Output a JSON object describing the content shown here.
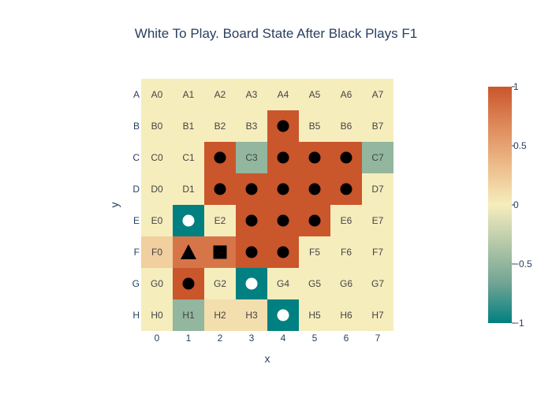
{
  "title": "White To Play. Board State After Black Plays F1",
  "chart_data": {
    "type": "heatmap",
    "x_categories": [
      "0",
      "1",
      "2",
      "3",
      "4",
      "5",
      "6",
      "7"
    ],
    "y_categories": [
      "A",
      "B",
      "C",
      "D",
      "E",
      "F",
      "G",
      "H"
    ],
    "xlabel": "x",
    "ylabel": "y",
    "zrange": [
      -1,
      1
    ],
    "colorbar_ticks": [
      1,
      0.5,
      0,
      -0.5,
      -1
    ],
    "colorbar_tick_labels": [
      "1",
      "0.5",
      "0",
      "−0.5",
      "−1"
    ],
    "colorscale": [
      "#008080",
      "#70a494",
      "#b4c8a8",
      "#f6edbd",
      "#edbb8a",
      "#de8a5a",
      "#ca562c"
    ],
    "z": [
      [
        0,
        0,
        0,
        0,
        0,
        0,
        0,
        0
      ],
      [
        0,
        0,
        0,
        0,
        1,
        0,
        0,
        0
      ],
      [
        0,
        0,
        1,
        -0.5,
        1,
        1,
        1,
        -0.5
      ],
      [
        0,
        0,
        1,
        1,
        1,
        1,
        1,
        0
      ],
      [
        0,
        -1,
        0,
        1,
        1,
        1,
        0,
        0
      ],
      [
        0.2,
        0.8,
        0.8,
        1,
        1,
        0,
        0,
        0
      ],
      [
        0,
        1,
        0,
        -1,
        0,
        0,
        0,
        0
      ],
      [
        0,
        -0.5,
        0.1,
        0.1,
        -1,
        0,
        0,
        0
      ]
    ],
    "cell_text": [
      [
        "A0",
        "A1",
        "A2",
        "A3",
        "A4",
        "A5",
        "A6",
        "A7"
      ],
      [
        "B0",
        "B1",
        "B2",
        "B3",
        "",
        "B5",
        "B6",
        "B7"
      ],
      [
        "C0",
        "C1",
        "",
        "C3",
        "",
        "",
        "",
        "C7"
      ],
      [
        "D0",
        "D1",
        "",
        "",
        "",
        "",
        "",
        "D7"
      ],
      [
        "E0",
        "",
        "E2",
        "",
        "",
        "",
        "E6",
        "E7"
      ],
      [
        "F0",
        "",
        "",
        "",
        "",
        "F5",
        "F6",
        "F7"
      ],
      [
        "G0",
        "",
        "G2",
        "",
        "G4",
        "G5",
        "G6",
        "G7"
      ],
      [
        "H0",
        "H1",
        "H2",
        "H3",
        "",
        "H5",
        "H6",
        "H7"
      ]
    ],
    "stones": [
      {
        "cell": "B4",
        "row": 1,
        "col": 4,
        "color": "black",
        "marker": "circle"
      },
      {
        "cell": "C2",
        "row": 2,
        "col": 2,
        "color": "black",
        "marker": "circle"
      },
      {
        "cell": "C4",
        "row": 2,
        "col": 4,
        "color": "black",
        "marker": "circle"
      },
      {
        "cell": "C5",
        "row": 2,
        "col": 5,
        "color": "black",
        "marker": "circle"
      },
      {
        "cell": "C6",
        "row": 2,
        "col": 6,
        "color": "black",
        "marker": "circle"
      },
      {
        "cell": "D2",
        "row": 3,
        "col": 2,
        "color": "black",
        "marker": "circle"
      },
      {
        "cell": "D3",
        "row": 3,
        "col": 3,
        "color": "black",
        "marker": "circle"
      },
      {
        "cell": "D4",
        "row": 3,
        "col": 4,
        "color": "black",
        "marker": "circle"
      },
      {
        "cell": "D5",
        "row": 3,
        "col": 5,
        "color": "black",
        "marker": "circle"
      },
      {
        "cell": "D6",
        "row": 3,
        "col": 6,
        "color": "black",
        "marker": "circle"
      },
      {
        "cell": "E1",
        "row": 4,
        "col": 1,
        "color": "white",
        "marker": "circle"
      },
      {
        "cell": "E3",
        "row": 4,
        "col": 3,
        "color": "black",
        "marker": "circle"
      },
      {
        "cell": "E4",
        "row": 4,
        "col": 4,
        "color": "black",
        "marker": "circle"
      },
      {
        "cell": "E5",
        "row": 4,
        "col": 5,
        "color": "black",
        "marker": "circle"
      },
      {
        "cell": "F1",
        "row": 5,
        "col": 1,
        "color": "black",
        "marker": "triangle"
      },
      {
        "cell": "F2",
        "row": 5,
        "col": 2,
        "color": "black",
        "marker": "square"
      },
      {
        "cell": "F3",
        "row": 5,
        "col": 3,
        "color": "black",
        "marker": "circle"
      },
      {
        "cell": "F4",
        "row": 5,
        "col": 4,
        "color": "black",
        "marker": "circle"
      },
      {
        "cell": "G1",
        "row": 6,
        "col": 1,
        "color": "black",
        "marker": "circle"
      },
      {
        "cell": "G3",
        "row": 6,
        "col": 3,
        "color": "white",
        "marker": "circle"
      },
      {
        "cell": "H4",
        "row": 7,
        "col": 4,
        "color": "white",
        "marker": "circle"
      }
    ]
  }
}
